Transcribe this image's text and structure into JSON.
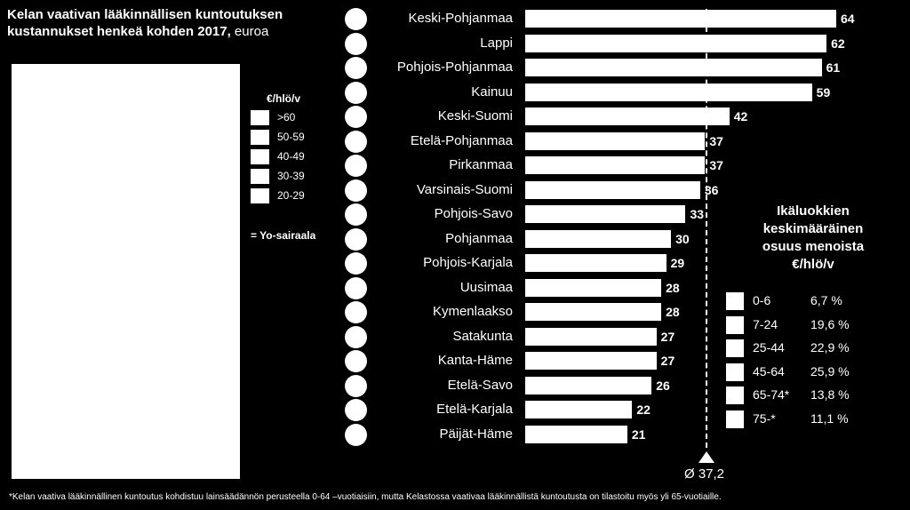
{
  "title": {
    "bold": "Kelan vaativan lääkinnällisen kuntoutuksen kustannukset henkeä kohden 2017,",
    "normal": " euroa"
  },
  "map_legend": {
    "title": "€/hlö/v",
    "items": [
      ">60",
      "50-59",
      "40-49",
      "30-39",
      "20-29"
    ],
    "hospital": "= Yo-sairaala"
  },
  "chart_data": {
    "type": "bar",
    "orientation": "horizontal",
    "categories": [
      "Keski-Pohjanmaa",
      "Lappi",
      "Pohjois-Pohjanmaa",
      "Kainuu",
      "Keski-Suomi",
      "Etelä-Pohjanmaa",
      "Pirkanmaa",
      "Varsinais-Suomi",
      "Pohjois-Savo",
      "Pohjanmaa",
      "Pohjois-Karjala",
      "Uusimaa",
      "Kymenlaakso",
      "Satakunta",
      "Kanta-Häme",
      "Etelä-Savo",
      "Etelä-Karjala",
      "Päijät-Häme"
    ],
    "values": [
      64,
      62,
      61,
      59,
      42,
      37,
      37,
      36,
      33,
      30,
      29,
      28,
      28,
      27,
      27,
      26,
      22,
      21
    ],
    "average": 37.2,
    "average_label": "Ø 37,2",
    "xlim": [
      0,
      64
    ]
  },
  "age_legend": {
    "title": [
      "Ikäluokkien",
      "keskimääräinen",
      "osuus menoista",
      "€/hlö/v"
    ],
    "items": [
      {
        "group": "0-6",
        "share": "6,7 %"
      },
      {
        "group": "7-24",
        "share": "19,6 %"
      },
      {
        "group": "25-44",
        "share": "22,9 %"
      },
      {
        "group": "45-64",
        "share": "25,9 %"
      },
      {
        "group": "65-74*",
        "share": "13,8 %"
      },
      {
        "group": "75-*",
        "share": "11,1 %"
      }
    ]
  },
  "footnote": "*Kelan vaativa lääkinnällinen kuntoutus kohdistuu lainsäädännön perusteella 0-64 –vuotiaisiin, mutta Kelastossa vaativaa lääkinnällistä kuntoutusta on tilastoitu myös yli 65-vuotiaille."
}
